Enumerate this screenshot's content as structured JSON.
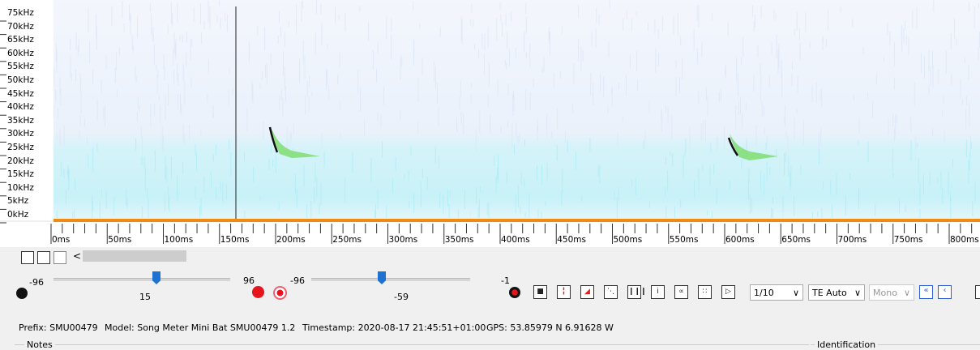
{
  "spectrogram": {
    "freq_labels": [
      "75kHz",
      "70kHz",
      "65kHz",
      "60kHz",
      "55kHz",
      "50kHz",
      "45kHz",
      "40kHz",
      "35kHz",
      "30kHz",
      "25kHz",
      "20kHz",
      "15kHz",
      "10kHz",
      "5kHz",
      "0kHz"
    ],
    "time_labels": [
      "0ms",
      "50ms",
      "100ms",
      "150ms",
      "200ms",
      "250ms",
      "300ms",
      "350ms",
      "400ms",
      "450ms",
      "500ms",
      "550ms",
      "600ms",
      "650ms",
      "700ms",
      "750ms",
      "800ms"
    ]
  },
  "scrollbar": {
    "left_arrow": "<"
  },
  "controls": {
    "slider1_min": "-96",
    "slider1_value": "15",
    "slider1_max": "96",
    "slider2_min": "-96",
    "slider2_value": "-59",
    "slider2_max": "-1",
    "speed": "1/10",
    "mode": "TE Auto",
    "channel": "Mono"
  },
  "info": {
    "prefix": "Prefix: SMU00479",
    "model": "Model: Song Meter Mini Bat SMU00479 1.2",
    "timestamp": "Timestamp: 2020-08-17 21:45:51+01:00",
    "gps": "GPS: 53.85979 N 6.91628 W"
  },
  "panels": {
    "notes": "Notes",
    "identification": "Identification"
  }
}
